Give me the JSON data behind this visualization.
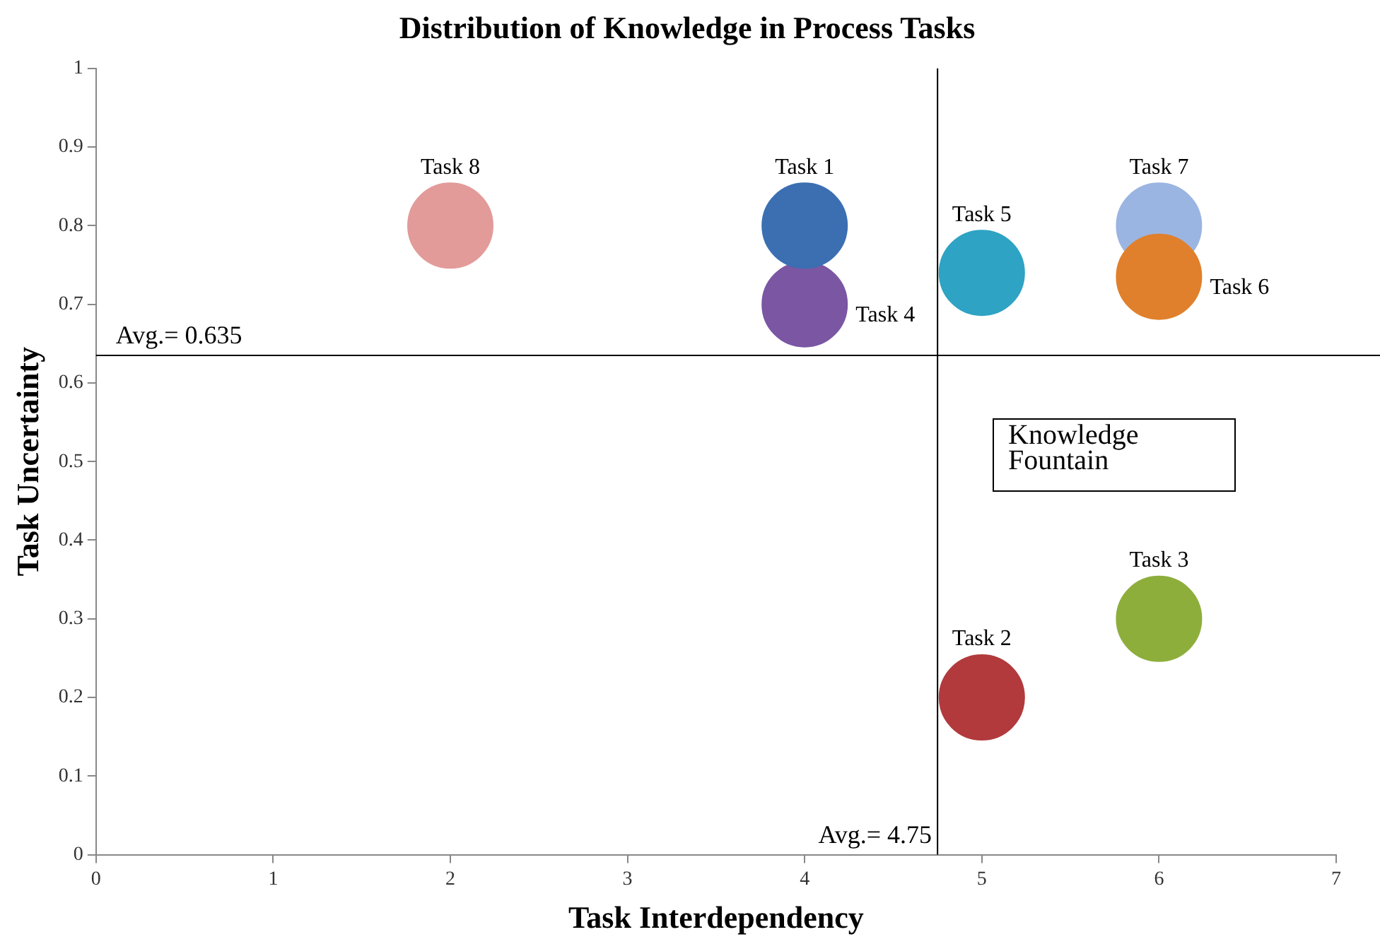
{
  "chart_data": {
    "type": "bubble",
    "title": "Distribution of Knowledge in Process Tasks",
    "xlabel": "Task Interdependency",
    "ylabel": "Task Uncertainty",
    "xlim": [
      0,
      7
    ],
    "xticks": [
      0,
      1,
      2,
      3,
      4,
      5,
      6,
      7
    ],
    "ylim": [
      0,
      1
    ],
    "yticks": [
      0,
      0.1,
      0.2,
      0.3,
      0.4,
      0.5,
      0.6,
      0.7,
      0.8,
      0.9,
      1
    ],
    "grid": false,
    "legend": false,
    "series": [
      {
        "name": "Task 1",
        "color": "#3b6fb2",
        "x": [
          4
        ],
        "values": [
          0.8
        ],
        "sizes": [
          1
        ]
      },
      {
        "name": "Task 2",
        "color": "#b23a3c",
        "x": [
          5
        ],
        "values": [
          0.2
        ],
        "sizes": [
          1
        ]
      },
      {
        "name": "Task 3",
        "color": "#8eae3c",
        "x": [
          6
        ],
        "values": [
          0.3
        ],
        "sizes": [
          1
        ]
      },
      {
        "name": "Task 4",
        "color": "#7a56a3",
        "x": [
          4
        ],
        "values": [
          0.7
        ],
        "sizes": [
          1
        ]
      },
      {
        "name": "Task 5",
        "color": "#2ea3c4",
        "x": [
          5
        ],
        "values": [
          0.74
        ],
        "sizes": [
          1
        ]
      },
      {
        "name": "Task 6",
        "color": "#e0802c",
        "x": [
          6
        ],
        "values": [
          0.735
        ],
        "sizes": [
          1
        ]
      },
      {
        "name": "Task 7",
        "color": "#9bb5e2",
        "x": [
          6
        ],
        "values": [
          0.8
        ],
        "sizes": [
          1
        ]
      },
      {
        "name": "Task 8",
        "color": "#e29b99",
        "x": [
          2
        ],
        "values": [
          0.8
        ],
        "sizes": [
          1
        ]
      }
    ],
    "ref_lines": [
      {
        "axis": "x",
        "value": 4.75,
        "label": "Avg.= 4.75",
        "color": "#000000"
      },
      {
        "axis": "y",
        "value": 0.635,
        "label": "Avg.= 0.635",
        "color": "#000000"
      }
    ],
    "annotations": [
      "Knowledge Fountain"
    ]
  }
}
